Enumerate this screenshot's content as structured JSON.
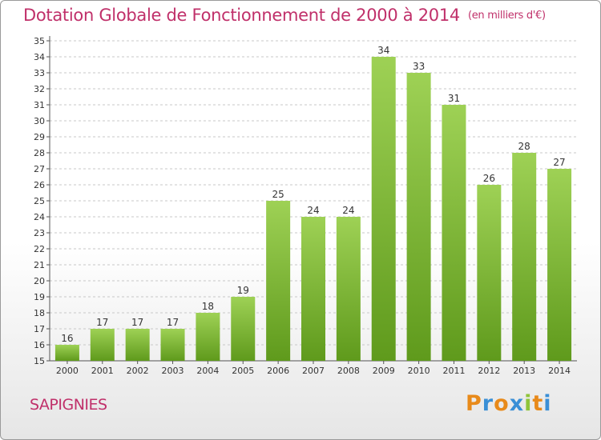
{
  "header": {
    "title": "Dotation Globale de Fonctionnement de 2000 à 2014",
    "unit": "(en milliers d'€)"
  },
  "footer": {
    "commune": "SAPIGNIES",
    "logo": "Proxiti"
  },
  "colors": {
    "title": "#c0306a",
    "bar_top": "#9ed155",
    "bar_bottom": "#5f9a1c",
    "grid": "#c8c8c8",
    "logo_letters": [
      "#e88a1a",
      "#3a8fd6",
      "#e88a1a",
      "#3a8fd6",
      "#8fc43a",
      "#e88a1a",
      "#3a8fd6"
    ]
  },
  "chart_data": {
    "type": "bar",
    "categories": [
      "2000",
      "2001",
      "2002",
      "2003",
      "2004",
      "2005",
      "2006",
      "2007",
      "2008",
      "2009",
      "2010",
      "2011",
      "2012",
      "2013",
      "2014"
    ],
    "values": [
      16,
      17,
      17,
      17,
      18,
      19,
      25,
      24,
      24,
      34,
      33,
      31,
      26,
      28,
      27
    ],
    "ylim": [
      15,
      35
    ],
    "yticks": [
      15,
      16,
      17,
      18,
      19,
      20,
      21,
      22,
      23,
      24,
      25,
      26,
      27,
      28,
      29,
      30,
      31,
      32,
      33,
      34,
      35
    ],
    "grid": true,
    "data_labels": true
  }
}
